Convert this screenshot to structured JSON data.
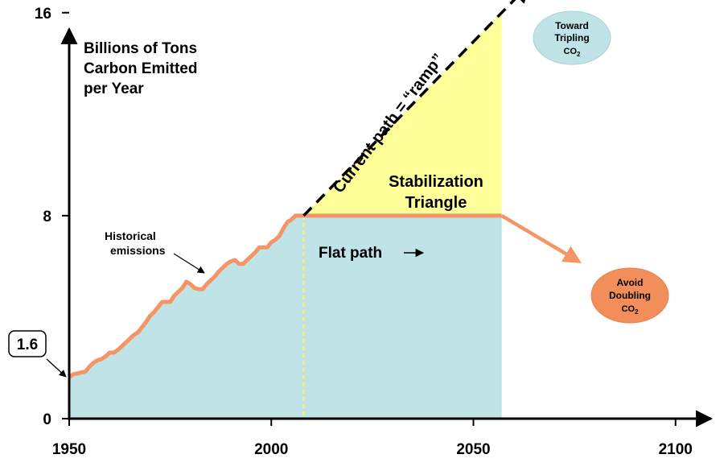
{
  "chart_data": {
    "type": "area",
    "ylabel": "Billions of Tons Carbon Emitted per Year",
    "ylabel_lines": [
      "Billions of Tons",
      "Carbon Emitted",
      "per Year"
    ],
    "xlim": [
      1950,
      2110
    ],
    "ylim": [
      0,
      16.5
    ],
    "x_ticks": [
      1950,
      2000,
      2050,
      2100
    ],
    "x_tick_labels": [
      "1950",
      "2000",
      "2050",
      "2100"
    ],
    "y_ticks": [
      0,
      8,
      16
    ],
    "y_tick_labels": [
      "0",
      "8",
      "16"
    ],
    "callout_value": "1.6",
    "historical": {
      "label_lines": [
        "Historical",
        "emissions"
      ],
      "x": [
        1950,
        1951,
        1952,
        1953,
        1954,
        1955,
        1956,
        1957,
        1958,
        1959,
        1960,
        1961,
        1962,
        1963,
        1964,
        1965,
        1966,
        1967,
        1968,
        1969,
        1970,
        1971,
        1972,
        1973,
        1974,
        1975,
        1976,
        1977,
        1978,
        1979,
        1980,
        1981,
        1982,
        1983,
        1984,
        1985,
        1986,
        1987,
        1988,
        1989,
        1990,
        1991,
        1992,
        1993,
        1994,
        1995,
        1996,
        1997,
        1998,
        1999,
        2000,
        2001,
        2002,
        2003,
        2004,
        2005,
        2006,
        2007,
        2008
      ],
      "y": [
        1.63,
        1.75,
        1.78,
        1.82,
        1.85,
        2.05,
        2.2,
        2.3,
        2.35,
        2.45,
        2.6,
        2.6,
        2.7,
        2.85,
        3.0,
        3.15,
        3.3,
        3.4,
        3.6,
        3.8,
        4.05,
        4.2,
        4.4,
        4.6,
        4.6,
        4.6,
        4.85,
        5.0,
        5.15,
        5.4,
        5.3,
        5.15,
        5.1,
        5.1,
        5.3,
        5.45,
        5.6,
        5.8,
        5.95,
        6.1,
        6.2,
        6.25,
        6.1,
        6.1,
        6.25,
        6.4,
        6.55,
        6.75,
        6.75,
        6.75,
        6.95,
        7.05,
        7.2,
        7.5,
        7.75,
        7.85,
        8.0,
        8.0,
        8.0
      ]
    },
    "flat_path": {
      "label": "Flat path",
      "x": [
        2008,
        2057
      ],
      "y": [
        8,
        8
      ]
    },
    "current_path": {
      "label": "Current path = “ramp”",
      "x": [
        2008,
        2057
      ],
      "y": [
        8,
        16
      ]
    },
    "decline_path": {
      "x": [
        2057,
        2076
      ],
      "y": [
        8,
        6.2
      ]
    },
    "stabilization_triangle": {
      "label_lines": [
        "Stabilization",
        "Triangle"
      ]
    },
    "avoid_doubling": {
      "lines": [
        "Avoid",
        "Doubling"
      ],
      "co2_base": "CO",
      "co2_sub": "2"
    },
    "toward_tripling": {
      "lines": [
        "Toward",
        "Tripling"
      ],
      "co2_base": "CO",
      "co2_sub": "2"
    },
    "colors": {
      "history_fill": "#bfe3e6",
      "triangle_fill": "#ffff99",
      "path_line": "#f59565",
      "ellipse_orange": "#f28e5a",
      "ellipse_blue": "#bfe3e6",
      "divider": "#f5f570"
    }
  }
}
